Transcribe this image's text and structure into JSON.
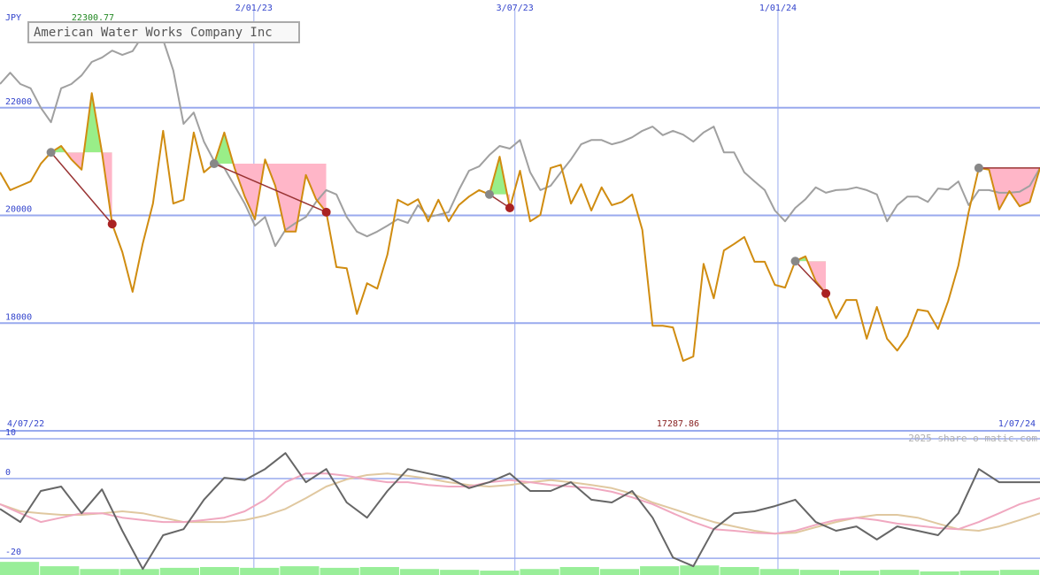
{
  "chart_data": [
    {
      "type": "line",
      "y_label": "JPY",
      "credit": "2025 share-o-matic.com",
      "max": 22300.77,
      "min": 17287.86,
      "date_range": [
        "4/07/22",
        "1/07/24"
      ],
      "xlim": [
        0,
        102
      ],
      "xticks": [
        {
          "value": 24.9,
          "label": "2/01/23"
        },
        {
          "value": 50.5,
          "label": "3/07/23"
        },
        {
          "value": 76.3,
          "label": "1/01/24"
        }
      ],
      "ylim": [
        16000,
        24000
      ],
      "yticks": [
        18000,
        20000,
        22000
      ],
      "grid": true,
      "grid_color": "#99aaee",
      "series": [
        {
          "name": "American Water Works Company Inc",
          "color": "#d08c10",
          "values": [
            20800,
            20470,
            20550,
            20630,
            20960,
            21170,
            21290,
            21040,
            20850,
            22270,
            21170,
            19840,
            19320,
            18580,
            19480,
            20220,
            21570,
            20220,
            20290,
            21540,
            20800,
            20960,
            21540,
            20880,
            20350,
            19930,
            21040,
            20550,
            19700,
            19700,
            20750,
            20300,
            20060,
            19040,
            19020,
            18170,
            18740,
            18640,
            19270,
            20290,
            20190,
            20300,
            19890,
            20290,
            19890,
            20190,
            20350,
            20470,
            20390,
            21090,
            20140,
            20830,
            19890,
            20010,
            20880,
            20940,
            20220,
            20580,
            20090,
            20520,
            20190,
            20250,
            20390,
            19730,
            17950,
            17950,
            17920,
            17300,
            17380,
            19100,
            18460,
            19350,
            19470,
            19600,
            19140,
            19140,
            18710,
            18660,
            19150,
            19240,
            18780,
            18550,
            18090,
            18430,
            18430,
            17710,
            18300,
            17710,
            17490,
            17760,
            18250,
            18220,
            17890,
            18410,
            19070,
            20060,
            20880,
            20850,
            20110,
            20450,
            20170,
            20250,
            20880
          ]
        },
        {
          "color": "#a0a0a0",
          "values": [
            22440,
            22650,
            22440,
            22360,
            22000,
            21730,
            22360,
            22440,
            22600,
            22850,
            22930,
            23060,
            22980,
            23050,
            23340,
            23420,
            23260,
            22690,
            21700,
            21910,
            21370,
            21010,
            20880,
            20550,
            20220,
            19810,
            19970,
            19430,
            19730,
            19860,
            19970,
            20250,
            20470,
            20390,
            19970,
            19700,
            19610,
            19700,
            19810,
            19930,
            19860,
            20190,
            19970,
            20010,
            20060,
            20470,
            20830,
            20910,
            21120,
            21290,
            21240,
            21400,
            20800,
            20470,
            20550,
            20800,
            21040,
            21320,
            21400,
            21400,
            21320,
            21370,
            21450,
            21570,
            21650,
            21490,
            21570,
            21500,
            21370,
            21540,
            21650,
            21170,
            21170,
            20800,
            20630,
            20470,
            20090,
            19890,
            20140,
            20300,
            20520,
            20420,
            20470,
            20480,
            20520,
            20470,
            20390,
            19890,
            20190,
            20350,
            20350,
            20250,
            20500,
            20480,
            20630,
            20190,
            20470,
            20470,
            20420,
            20420,
            20440,
            20550,
            20880
          ]
        }
      ],
      "trades": [
        {
          "start": 5,
          "end": 11
        },
        {
          "start": 21,
          "end": 32
        },
        {
          "start": 48,
          "end": 50
        },
        {
          "start": 78,
          "end": 81
        },
        {
          "start": 96,
          "end": 102
        }
      ]
    },
    {
      "type": "line",
      "xlim": [
        0,
        51
      ],
      "ylim": [
        -24.2,
        12
      ],
      "yticks": [
        -20,
        0,
        10
      ],
      "series": [
        {
          "color": "#666666",
          "values": [
            -7.6,
            -10.9,
            -3.1,
            -2.0,
            -8.7,
            -2.7,
            -13.1,
            -22.7,
            -14.2,
            -12.7,
            -5.3,
            0.2,
            -0.4,
            2.4,
            6.4,
            -0.9,
            2.4,
            -6.0,
            -9.8,
            -3.1,
            2.4,
            1.3,
            0.2,
            -2.4,
            -0.9,
            1.3,
            -3.1,
            -3.1,
            -0.9,
            -5.3,
            -6.0,
            -3.1,
            -9.8,
            -19.8,
            -22.0,
            -12.7,
            -8.7,
            -8.2,
            -6.9,
            -5.3,
            -10.9,
            -13.1,
            -12.0,
            -15.3,
            -12.0,
            -13.1,
            -14.2,
            -8.7,
            2.4,
            -0.9,
            -0.9,
            -0.9
          ]
        },
        {
          "color": "#f0a8c0",
          "values": [
            -6.4,
            -8.7,
            -10.9,
            -9.8,
            -8.7,
            -8.7,
            -9.8,
            -10.4,
            -10.9,
            -10.9,
            -10.4,
            -9.8,
            -8.2,
            -5.3,
            -0.9,
            1.3,
            1.3,
            0.7,
            -0.2,
            -0.9,
            -0.9,
            -1.6,
            -2.0,
            -2.0,
            -0.9,
            -0.4,
            -0.9,
            -1.6,
            -2.0,
            -2.4,
            -3.3,
            -4.7,
            -6.4,
            -8.7,
            -10.9,
            -12.7,
            -13.1,
            -13.6,
            -13.8,
            -13.1,
            -11.6,
            -10.4,
            -9.8,
            -10.4,
            -11.3,
            -11.8,
            -12.4,
            -12.7,
            -10.9,
            -8.7,
            -6.4,
            -4.9
          ]
        },
        {
          "color": "#e0c8a0",
          "values": [
            -6.4,
            -8.2,
            -8.7,
            -9.1,
            -9.1,
            -8.7,
            -8.2,
            -8.7,
            -9.8,
            -10.9,
            -10.9,
            -10.9,
            -10.4,
            -9.3,
            -7.6,
            -4.9,
            -2.0,
            -0.2,
            0.9,
            1.3,
            0.7,
            0.0,
            -0.9,
            -1.6,
            -2.0,
            -1.6,
            -0.9,
            -0.4,
            -0.9,
            -1.6,
            -2.4,
            -3.8,
            -6.0,
            -7.6,
            -9.3,
            -10.9,
            -12.0,
            -13.1,
            -13.8,
            -13.6,
            -12.2,
            -10.9,
            -9.8,
            -9.1,
            -9.1,
            -9.8,
            -11.3,
            -12.7,
            -13.1,
            -12.0,
            -10.4,
            -8.7
          ]
        }
      ],
      "volume": {
        "color": "#99ee99",
        "values": [
          -20.9,
          -22.0,
          -22.7,
          -22.7,
          -22.4,
          -22.2,
          -22.4,
          -22.0,
          -22.4,
          -22.2,
          -22.7,
          -22.9,
          -23.1,
          -22.7,
          -22.2,
          -22.7,
          -22.0,
          -21.8,
          -22.2,
          -22.7,
          -22.9,
          -23.1,
          -22.9,
          -23.3,
          -23.1,
          -22.9
        ]
      }
    }
  ]
}
